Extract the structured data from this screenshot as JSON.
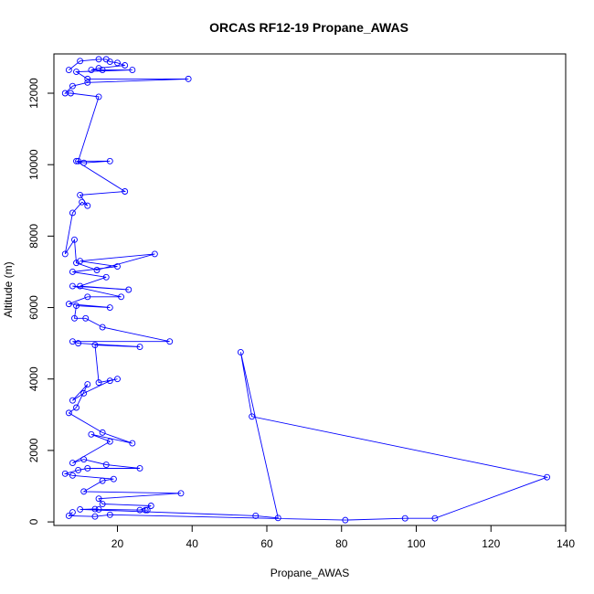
{
  "chart_data": {
    "type": "line",
    "title": "ORCAS RF12-19 Propane_AWAS",
    "xlabel": "Propane_AWAS",
    "ylabel": "Altitude (m)",
    "xlim": [
      3,
      140
    ],
    "ylim": [
      -100,
      13100
    ],
    "xticks": [
      20,
      40,
      60,
      80,
      100,
      120,
      140
    ],
    "yticks": [
      0,
      2000,
      4000,
      6000,
      8000,
      10000,
      12000
    ],
    "grid": false,
    "legend": "none",
    "series": [
      {
        "color": "#0000ff",
        "marker": "open-circle",
        "points": [
          [
            7.0,
            12650
          ],
          [
            10.0,
            12900
          ],
          [
            15.0,
            12950
          ],
          [
            17.0,
            12950
          ],
          [
            18.0,
            12880
          ],
          [
            20.0,
            12850
          ],
          [
            22.0,
            12780
          ],
          [
            15.0,
            12700
          ],
          [
            13.0,
            12650
          ],
          [
            16.0,
            12650
          ],
          [
            24.0,
            12650
          ],
          [
            9.0,
            12600
          ],
          [
            12.0,
            12400
          ],
          [
            39.0,
            12400
          ],
          [
            12.0,
            12300
          ],
          [
            8.0,
            12200
          ],
          [
            6.0,
            12000
          ],
          [
            7.5,
            12000
          ],
          [
            15.0,
            11900
          ],
          [
            9.5,
            10100
          ],
          [
            18.0,
            10100
          ],
          [
            11.0,
            10050
          ],
          [
            9.0,
            10100
          ],
          [
            22.0,
            9250
          ],
          [
            10.0,
            9150
          ],
          [
            12.0,
            8850
          ],
          [
            10.5,
            8950
          ],
          [
            8.0,
            8650
          ],
          [
            6.0,
            7500
          ],
          [
            8.5,
            7900
          ],
          [
            9.0,
            7250
          ],
          [
            14.5,
            7050
          ],
          [
            30.0,
            7500
          ],
          [
            10.0,
            7300
          ],
          [
            20.0,
            7150
          ],
          [
            8.0,
            7000
          ],
          [
            17.0,
            6850
          ],
          [
            10.0,
            6600
          ],
          [
            23.0,
            6500
          ],
          [
            8.0,
            6600
          ],
          [
            21.0,
            6300
          ],
          [
            12.0,
            6300
          ],
          [
            7.0,
            6100
          ],
          [
            18.0,
            6000
          ],
          [
            9.0,
            6050
          ],
          [
            8.5,
            5700
          ],
          [
            11.5,
            5700
          ],
          [
            16.0,
            5450
          ],
          [
            34.0,
            5050
          ],
          [
            8.0,
            5050
          ],
          [
            9.5,
            5000
          ],
          [
            26.0,
            4900
          ],
          [
            14.0,
            4950
          ],
          [
            15.0,
            3900
          ],
          [
            20.0,
            4000
          ],
          [
            18.0,
            3950
          ],
          [
            11.0,
            3600
          ],
          [
            8.0,
            3400
          ],
          [
            12.0,
            3850
          ],
          [
            9.0,
            3200
          ],
          [
            7.0,
            3050
          ],
          [
            16.0,
            2500
          ],
          [
            24.0,
            2200
          ],
          [
            13.0,
            2450
          ],
          [
            18.0,
            2250
          ],
          [
            8.0,
            1650
          ],
          [
            11.0,
            1750
          ],
          [
            17.0,
            1600
          ],
          [
            26.0,
            1500
          ],
          [
            12.0,
            1500
          ],
          [
            9.5,
            1450
          ],
          [
            6.0,
            1350
          ],
          [
            8.0,
            1300
          ],
          [
            19.0,
            1200
          ],
          [
            16.0,
            1150
          ],
          [
            11.0,
            850
          ],
          [
            37.0,
            800
          ],
          [
            15.0,
            650
          ],
          [
            16.0,
            500
          ],
          [
            29.0,
            450
          ],
          [
            26.0,
            330
          ],
          [
            27.5,
            330
          ],
          [
            28.0,
            330
          ],
          [
            15.0,
            350
          ],
          [
            14.0,
            360
          ],
          [
            10.0,
            350
          ],
          [
            57.0,
            170
          ],
          [
            63.0,
            110
          ],
          [
            53.0,
            4750
          ],
          [
            56.0,
            2950
          ],
          [
            135.0,
            1250
          ],
          [
            105.0,
            100
          ],
          [
            97.0,
            100
          ],
          [
            81.0,
            50
          ],
          [
            18.0,
            200
          ],
          [
            14.0,
            150
          ],
          [
            7.0,
            170
          ],
          [
            8.0,
            270
          ]
        ]
      }
    ]
  }
}
